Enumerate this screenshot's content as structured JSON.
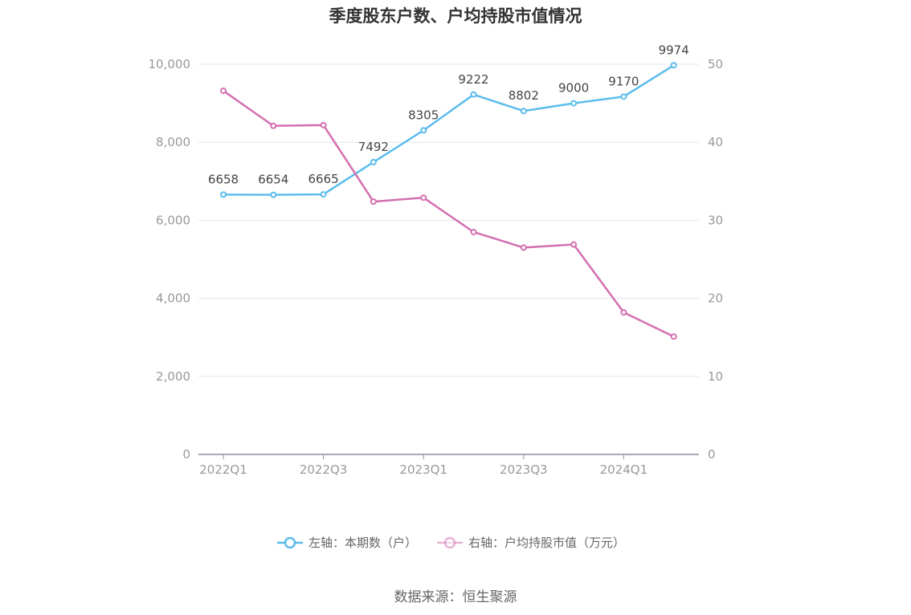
{
  "chart_data": {
    "type": "line",
    "title": "季度股东户数、户均持股市值情况",
    "categories": [
      "2022Q1",
      "2022Q2",
      "2022Q3",
      "2022Q4",
      "2023Q1",
      "2023Q2",
      "2023Q3",
      "2023Q4",
      "2024Q1",
      "2024Q2"
    ],
    "x_tick_labels": [
      "2022Q1",
      "2022Q3",
      "2023Q1",
      "2023Q3",
      "2024Q1"
    ],
    "left_axis": {
      "min": 0,
      "max": 10000,
      "ticks": [
        "0",
        "2,000",
        "4,000",
        "6,000",
        "8,000",
        "10,000"
      ]
    },
    "right_axis": {
      "min": 0,
      "max": 50,
      "ticks": [
        "0",
        "10",
        "20",
        "30",
        "40",
        "50"
      ]
    },
    "series": [
      {
        "name": "左轴：本期数（户）",
        "axis": "left",
        "color": "#5bbcec",
        "values": [
          6658,
          6654,
          6665,
          7492,
          8305,
          9222,
          8802,
          9000,
          9170,
          9974
        ],
        "labels": [
          "6658",
          "6654",
          "6665",
          "7492",
          "8305",
          "9222",
          "8802",
          "9000",
          "9170",
          "9974"
        ]
      },
      {
        "name": "右轴：户均持股市值（万元）",
        "axis": "right",
        "color": "#d36fb0",
        "values": [
          46.6,
          42.1,
          42.2,
          32.4,
          32.9,
          28.5,
          26.5,
          26.9,
          18.2,
          15.1
        ]
      }
    ],
    "grid": true,
    "legend_position": "bottom"
  },
  "source": "数据来源：恒生聚源"
}
